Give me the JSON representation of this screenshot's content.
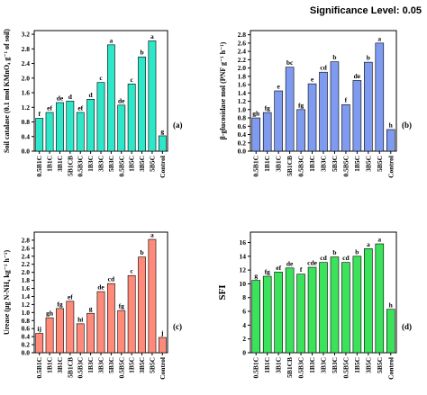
{
  "significance": "Significance Level: 0.05",
  "chart_data": [
    {
      "type": "bar",
      "panel_label": "(a)",
      "ylabel": "Soil catalase (0.1 mol KMnO₄ g⁻¹ of soil)",
      "ylim": [
        0,
        3.3
      ],
      "yticks": [
        "0.0",
        "0.4",
        "0.8",
        "1.2",
        "1.6",
        "2.0",
        "2.4",
        "2.8",
        "3.2"
      ],
      "categories": [
        "0.5B1C",
        "1B1C",
        "3B1C",
        "5B1CB",
        "0.5B3C",
        "1B3C",
        "3B3C",
        "5B3C",
        "0.5B5C",
        "1B5C",
        "3B5C",
        "5B5C",
        "Control"
      ],
      "values": [
        0.9,
        1.06,
        1.33,
        1.37,
        1.06,
        1.42,
        1.88,
        2.91,
        1.26,
        1.84,
        2.58,
        3.02,
        0.42
      ],
      "letters": [
        "f",
        "ef",
        "de",
        "d",
        "ef",
        "d",
        "c",
        "a",
        "de",
        "c",
        "b",
        "a",
        "g"
      ],
      "color": "#2ee6c8"
    },
    {
      "type": "bar",
      "panel_label": "(b)",
      "ylabel": "β-glucosidase mol (PNF g⁻¹ h⁻¹)",
      "ylim": [
        0,
        2.9
      ],
      "yticks": [
        "0.0",
        "0.2",
        "0.4",
        "0.6",
        "0.8",
        "1.0",
        "1.2",
        "1.4",
        "1.6",
        "1.8",
        "2.0",
        "2.2",
        "2.4",
        "2.6",
        "2.8"
      ],
      "categories": [
        "0.5B1C",
        "1B1C",
        "3B1C",
        "5B1CB",
        "0.5B3C",
        "1B3C",
        "3B3C",
        "5B3C",
        "0.5B5C",
        "1B5C",
        "3B5C",
        "5B5C",
        "Control"
      ],
      "values": [
        0.8,
        0.93,
        1.45,
        2.02,
        1.0,
        1.62,
        1.9,
        2.15,
        1.12,
        1.7,
        2.14,
        2.6,
        0.52
      ],
      "letters": [
        "gh",
        "fg",
        "e",
        "bc",
        "fg",
        "e",
        "cd",
        "b",
        "f",
        "de",
        "b",
        "a",
        "h"
      ],
      "color": "#7f9bf0"
    },
    {
      "type": "bar",
      "panel_label": "(c)",
      "ylabel": "Urease (μg N-NH₄ kg⁻¹ h⁻¹)",
      "ylim": [
        0,
        3.0
      ],
      "yticks": [
        "0.0",
        "0.2",
        "0.4",
        "0.6",
        "0.8",
        "1.0",
        "1.2",
        "1.4",
        "1.6",
        "1.8",
        "2.0",
        "2.2",
        "2.4",
        "2.6",
        "2.8"
      ],
      "categories": [
        "0.5B1C",
        "1B1C",
        "3B1C",
        "5B1CB",
        "0.5B3C",
        "1B3C",
        "3B3C",
        "5B3C",
        "0.5B5C",
        "1B5C",
        "3B5C",
        "5B5C",
        "Control"
      ],
      "values": [
        0.48,
        0.87,
        1.1,
        1.28,
        0.72,
        0.98,
        1.52,
        1.72,
        1.05,
        1.92,
        2.38,
        2.82,
        0.38
      ],
      "letters": [
        "ij",
        "gh",
        "fg",
        "ef",
        "hi",
        "g",
        "de",
        "cd",
        "fg",
        "c",
        "b",
        "a",
        "j"
      ],
      "color": "#ff8a7a"
    },
    {
      "type": "bar",
      "panel_label": "(d)",
      "ylabel": "SFI",
      "ylim": [
        0,
        17.5
      ],
      "yticks": [
        "0",
        "2",
        "4",
        "6",
        "8",
        "10",
        "12",
        "14",
        "16"
      ],
      "categories": [
        "0.5B1C",
        "1B1C",
        "3B1C",
        "5B1CB",
        "0.5B3C",
        "1B3C",
        "3B3C",
        "5B3C",
        "0.5B5C",
        "1B5C",
        "3B5C",
        "5B5C",
        "Control"
      ],
      "values": [
        10.5,
        11.1,
        11.7,
        12.3,
        11.4,
        12.4,
        13.1,
        13.9,
        13.1,
        14.0,
        15.1,
        15.8,
        6.3
      ],
      "letters": [
        "g",
        "fg",
        "ef",
        "de",
        "f",
        "cde",
        "cd",
        "b",
        "cd",
        "b",
        "a",
        "a",
        "h"
      ],
      "color": "#3be35a"
    }
  ]
}
